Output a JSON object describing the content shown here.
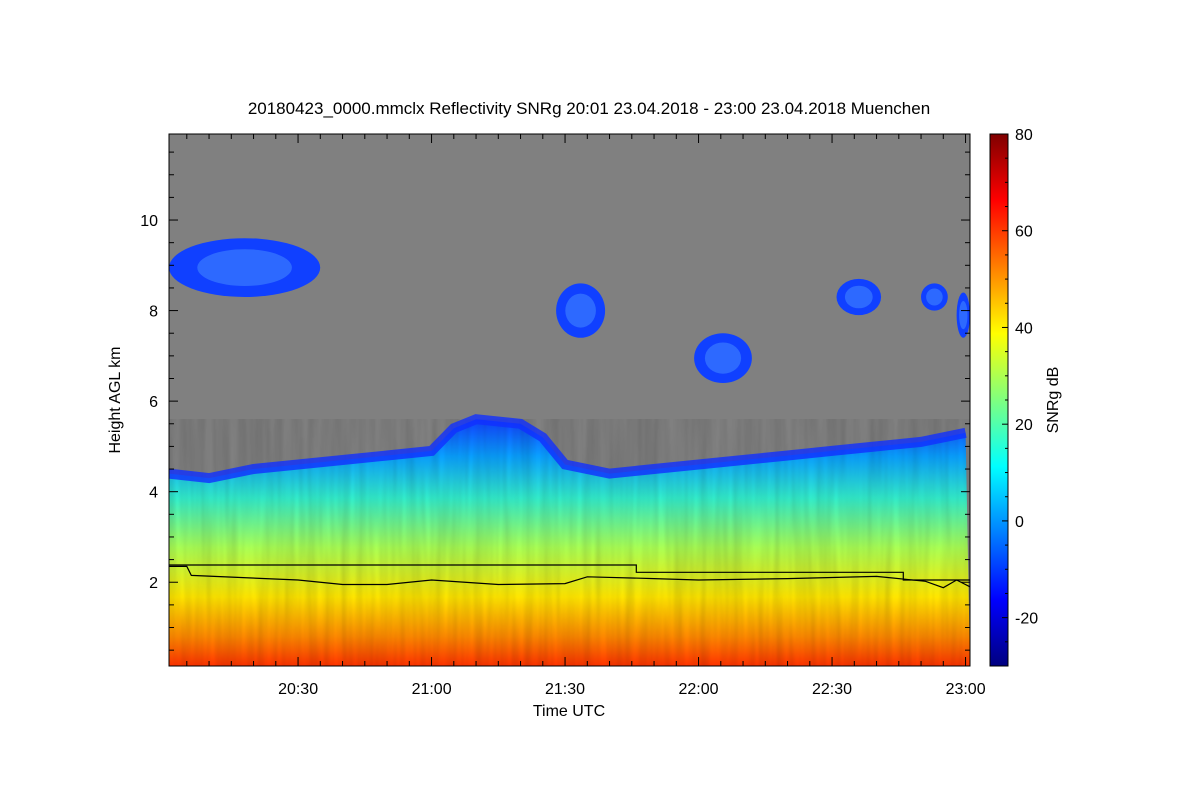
{
  "chart_data": {
    "type": "heatmap",
    "title": "20180423_0000.mmclx Reflectivity SNRg   20:01 23.04.2018 - 23:00 23.04.2018 Muenchen",
    "xlabel": "Time UTC",
    "ylabel": "Height AGL km",
    "colorbar_label": "SNRg dB",
    "xlim": [
      "20:01",
      "23:01"
    ],
    "ylim": [
      0.15,
      11.9
    ],
    "clim": [
      -30,
      80
    ],
    "x_ticks": [
      "20:30",
      "21:00",
      "21:30",
      "22:00",
      "22:30",
      "23:00"
    ],
    "y_ticks": [
      2,
      4,
      6,
      8,
      10
    ],
    "colorbar_ticks": [
      -20,
      0,
      20,
      40,
      60,
      80
    ],
    "background_color": "#808080",
    "colormap": [
      "#00007f",
      "#0000ff",
      "#007fff",
      "#00ffff",
      "#7fff7f",
      "#ffff00",
      "#ff7f00",
      "#ff0000",
      "#7f0000"
    ],
    "cloud_top_km": [
      {
        "t": "20:01",
        "h": 4.4
      },
      {
        "t": "20:10",
        "h": 4.3
      },
      {
        "t": "20:20",
        "h": 4.5
      },
      {
        "t": "20:30",
        "h": 4.6
      },
      {
        "t": "20:40",
        "h": 4.7
      },
      {
        "t": "20:50",
        "h": 4.8
      },
      {
        "t": "21:00",
        "h": 4.9
      },
      {
        "t": "21:05",
        "h": 5.4
      },
      {
        "t": "21:10",
        "h": 5.6
      },
      {
        "t": "21:20",
        "h": 5.5
      },
      {
        "t": "21:25",
        "h": 5.2
      },
      {
        "t": "21:30",
        "h": 4.6
      },
      {
        "t": "21:40",
        "h": 4.4
      },
      {
        "t": "21:50",
        "h": 4.5
      },
      {
        "t": "22:00",
        "h": 4.6
      },
      {
        "t": "22:10",
        "h": 4.7
      },
      {
        "t": "22:20",
        "h": 4.8
      },
      {
        "t": "22:30",
        "h": 4.9
      },
      {
        "t": "22:40",
        "h": 5.0
      },
      {
        "t": "22:50",
        "h": 5.1
      },
      {
        "t": "23:00",
        "h": 5.3
      }
    ],
    "upper_cloud_patches": [
      {
        "t0": "20:01",
        "t1": "20:35",
        "h0": 8.3,
        "h1": 9.6
      },
      {
        "t0": "21:28",
        "t1": "21:39",
        "h0": 7.4,
        "h1": 8.6
      },
      {
        "t0": "21:59",
        "t1": "22:12",
        "h0": 6.4,
        "h1": 7.5
      },
      {
        "t0": "22:31",
        "t1": "22:41",
        "h0": 7.9,
        "h1": 8.7
      },
      {
        "t0": "22:50",
        "t1": "22:56",
        "h0": 8.0,
        "h1": 8.6
      },
      {
        "t0": "22:58",
        "t1": "23:01",
        "h0": 7.4,
        "h1": 8.4
      }
    ],
    "series": [
      {
        "x": [
          "20:01",
          "20:05",
          "20:06",
          "20:30",
          "20:40",
          "20:50",
          "21:00",
          "21:15",
          "21:30",
          "21:35",
          "21:50",
          "22:00",
          "22:20",
          "22:40",
          "22:51",
          "22:55",
          "22:58",
          "23:01"
        ],
        "values": [
          2.35,
          2.35,
          2.15,
          2.05,
          1.95,
          1.95,
          2.05,
          1.95,
          1.97,
          2.12,
          2.08,
          2.05,
          2.08,
          2.13,
          2.02,
          1.88,
          2.05,
          1.9
        ]
      },
      {
        "x": [
          "20:01",
          "21:46",
          "21:46",
          "22:46",
          "22:46",
          "23:01"
        ],
        "values": [
          2.38,
          2.38,
          2.22,
          2.22,
          2.05,
          2.05
        ]
      }
    ]
  }
}
